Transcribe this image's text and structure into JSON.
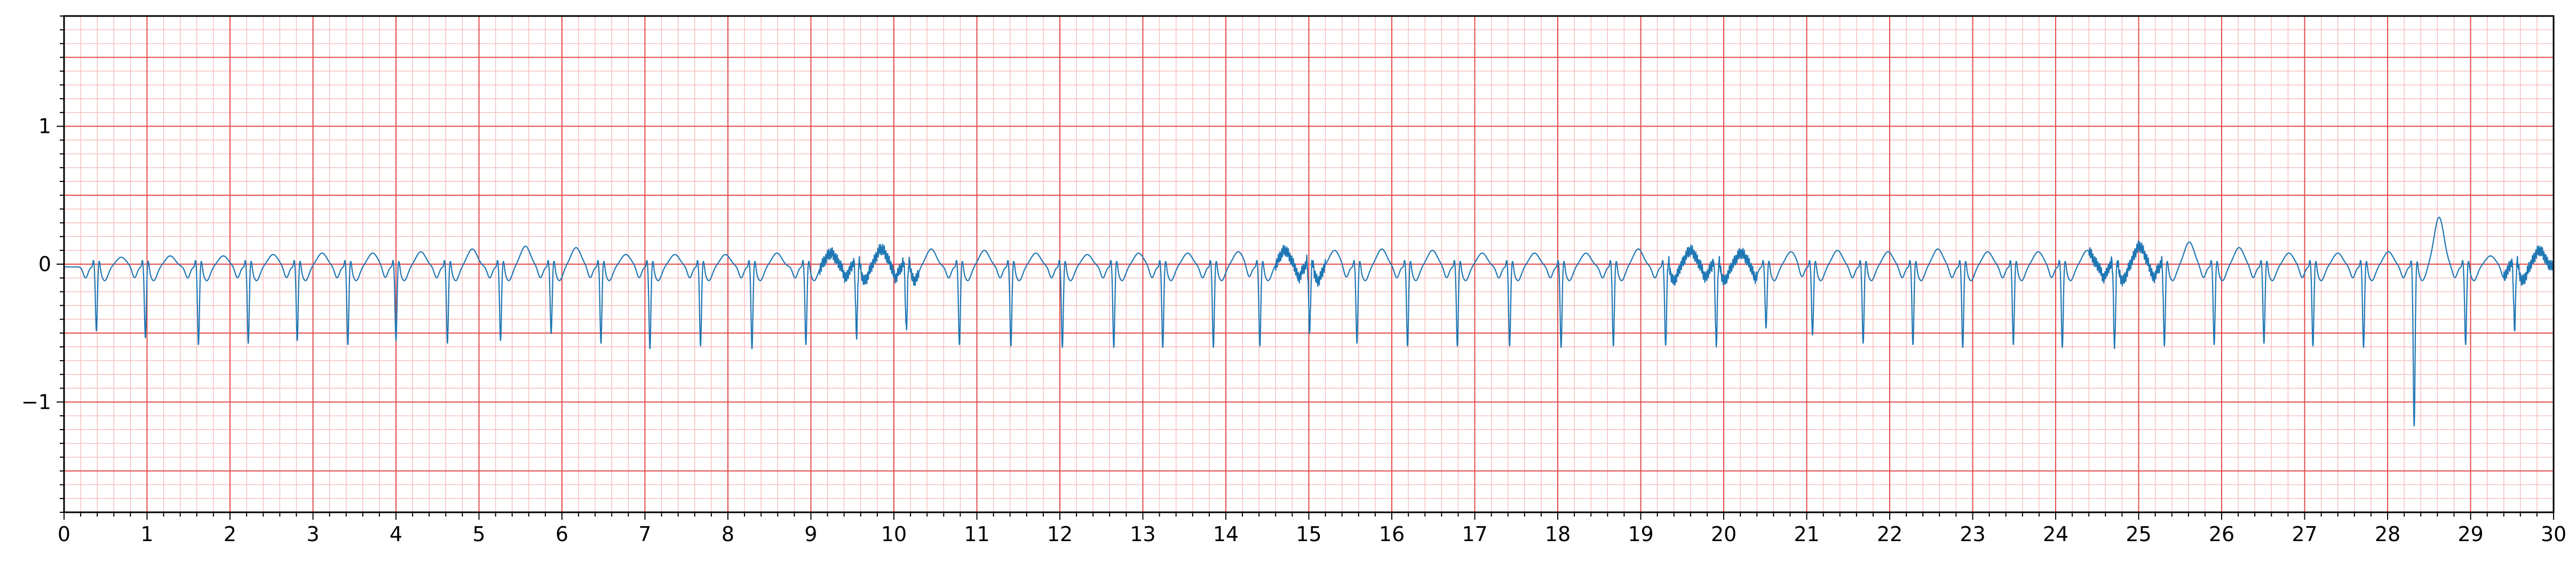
{
  "chart_data": {
    "type": "line",
    "title": "",
    "xlabel": "",
    "ylabel": "",
    "xlim": [
      0,
      30
    ],
    "ylim": [
      -1.8,
      1.8
    ],
    "grid": "ecg paper: major lines every 1 (x) and 0.5 (y), minor lines every 0.2 (x) and 0.1 (y)",
    "x_ticks": [
      0,
      1,
      2,
      3,
      4,
      5,
      6,
      7,
      8,
      9,
      10,
      11,
      12,
      13,
      14,
      15,
      16,
      17,
      18,
      19,
      20,
      21,
      22,
      23,
      24,
      25,
      26,
      27,
      28,
      29,
      30
    ],
    "x_tick_labels": [
      "0",
      "1",
      "2",
      "3",
      "4",
      "5",
      "6",
      "7",
      "8",
      "9",
      "10",
      "11",
      "12",
      "13",
      "14",
      "15",
      "16",
      "17",
      "18",
      "19",
      "20",
      "21",
      "22",
      "23",
      "24",
      "25",
      "26",
      "27",
      "28",
      "29",
      "30"
    ],
    "y_ticks": [
      -1,
      0,
      1
    ],
    "y_tick_labels": [
      "−1",
      "0",
      "1"
    ],
    "colors": {
      "signal": "#1f77b4",
      "major_grid": "#e34a4a",
      "minor_grid": "#f6bcbc"
    },
    "series": [
      {
        "name": "",
        "baseline": -0.02,
        "beat_times": [
          0.39,
          0.98,
          1.62,
          2.22,
          2.81,
          3.42,
          4.0,
          4.62,
          5.26,
          5.87,
          6.47,
          7.06,
          7.67,
          8.29,
          8.94,
          9.55,
          10.15,
          10.79,
          11.41,
          12.03,
          12.65,
          13.24,
          13.85,
          14.41,
          15.01,
          15.58,
          16.19,
          16.79,
          17.42,
          18.04,
          18.67,
          19.3,
          19.91,
          20.51,
          21.07,
          21.68,
          22.28,
          22.88,
          23.49,
          24.08,
          24.71,
          25.31,
          25.91,
          26.51,
          27.1,
          27.71,
          28.32,
          28.94,
          29.53
        ],
        "beat_troughs": [
          -0.48,
          -0.53,
          -0.58,
          -0.57,
          -0.55,
          -0.58,
          -0.55,
          -0.57,
          -0.55,
          -0.5,
          -0.57,
          -0.61,
          -0.59,
          -0.61,
          -0.58,
          -0.52,
          -0.47,
          -0.58,
          -0.59,
          -0.6,
          -0.6,
          -0.6,
          -0.6,
          -0.59,
          -0.49,
          -0.57,
          -0.59,
          -0.59,
          -0.59,
          -0.6,
          -0.59,
          -0.59,
          -0.59,
          -0.46,
          -0.51,
          -0.57,
          -0.58,
          -0.6,
          -0.58,
          -0.6,
          -0.6,
          -0.59,
          -0.58,
          -0.57,
          -0.59,
          -0.6,
          -1.17,
          -0.58,
          -0.47
        ],
        "t_wave_peaks": [
          0.07,
          0.08,
          0.08,
          0.09,
          0.1,
          0.1,
          0.11,
          0.13,
          0.15,
          0.14,
          0.09,
          0.09,
          0.09,
          0.1,
          0.1,
          0.13,
          0.13,
          0.12,
          0.1,
          0.09,
          0.1,
          0.1,
          0.11,
          0.12,
          0.12,
          0.13,
          0.12,
          0.1,
          0.1,
          0.1,
          0.13,
          0.12,
          0.1,
          0.11,
          0.12,
          0.11,
          0.13,
          0.11,
          0.11,
          0.12,
          0.15,
          0.18,
          0.14,
          0.1,
          0.1,
          0.11,
          0.36,
          0.08,
          0.12
        ],
        "noise_segments": [
          [
            9.1,
            10.3
          ],
          [
            14.6,
            15.2
          ],
          [
            19.3,
            20.4
          ],
          [
            24.4,
            25.3
          ],
          [
            29.4,
            30.0
          ]
        ]
      }
    ]
  }
}
